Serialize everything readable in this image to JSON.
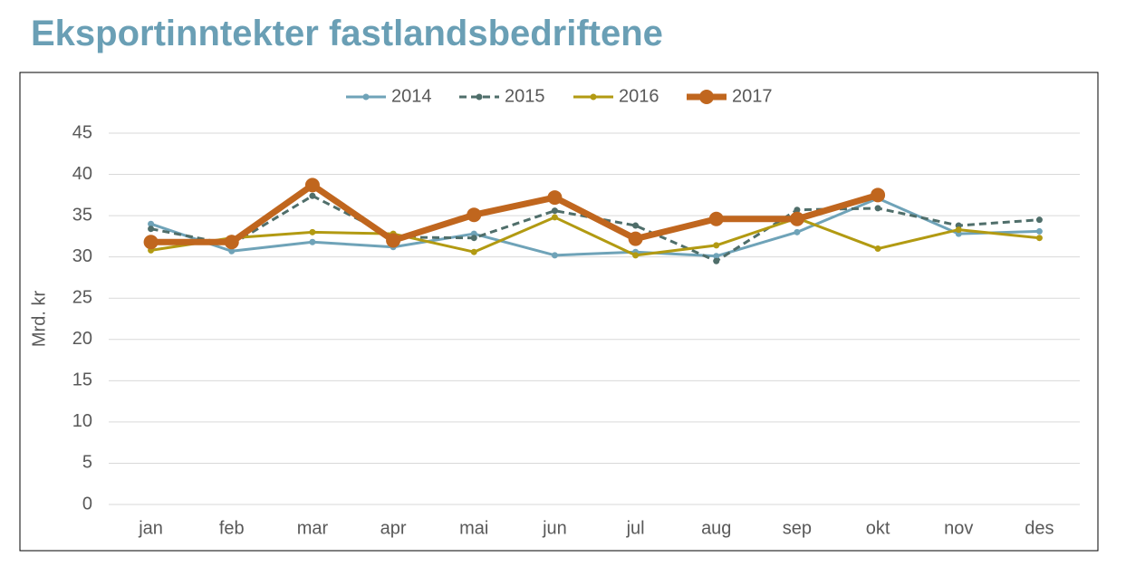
{
  "chart_data": {
    "type": "line",
    "title": "Eksportinntekter fastlandsbedriftene",
    "y_label": "Mrd. kr",
    "categories": [
      "jan",
      "feb",
      "mar",
      "apr",
      "mai",
      "jun",
      "jul",
      "aug",
      "sep",
      "okt",
      "nov",
      "des"
    ],
    "series": [
      {
        "name": "2014",
        "color": "#6fa3b8",
        "dashed": false,
        "values": [
          34.0,
          30.7,
          31.8,
          31.2,
          32.8,
          30.2,
          30.6,
          30.1,
          33.0,
          37.1,
          32.8,
          33.1
        ]
      },
      {
        "name": "2015",
        "color": "#4f6e6a",
        "dashed": true,
        "values": [
          33.4,
          31.5,
          37.4,
          32.4,
          32.3,
          35.6,
          33.8,
          29.5,
          35.7,
          35.9,
          33.8,
          34.5
        ]
      },
      {
        "name": "2016",
        "color": "#b29a12",
        "dashed": false,
        "values": [
          30.8,
          32.3,
          33.0,
          32.8,
          30.6,
          34.8,
          30.2,
          31.4,
          34.7,
          31.0,
          33.3,
          32.3
        ]
      },
      {
        "name": "2017",
        "color": "#c0661e",
        "dashed": false,
        "values": [
          31.8,
          31.8,
          38.7,
          32.0,
          35.1,
          37.2,
          32.2,
          34.6,
          34.6,
          37.5,
          null,
          null
        ]
      }
    ],
    "ylim": [
      0,
      45
    ],
    "yticks": [
      0,
      5,
      10,
      15,
      20,
      25,
      30,
      35,
      40,
      45
    ],
    "grid": true,
    "legend": "top"
  }
}
